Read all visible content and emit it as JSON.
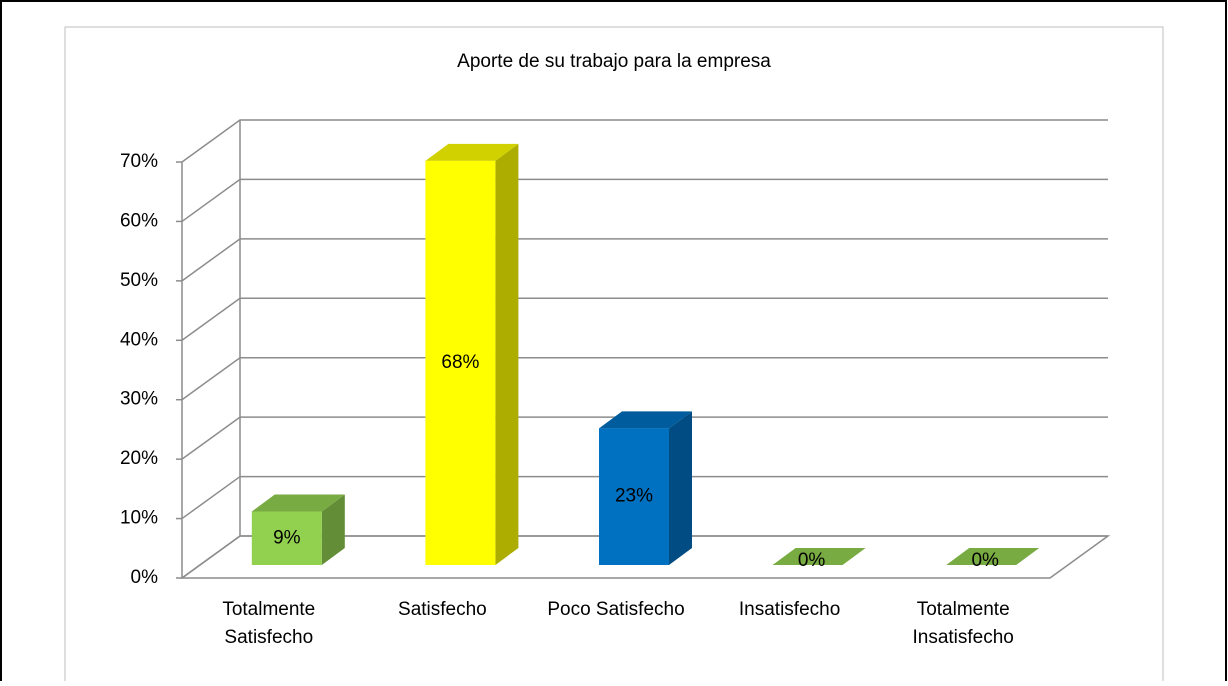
{
  "chart_data": {
    "type": "bar3d",
    "title": "Aporte de su trabajo para la empresa",
    "categories": [
      "Totalmente Satisfecho",
      "Satisfecho",
      "Poco Satisfecho",
      "Insatisfecho",
      "Totalmente Insatisfecho"
    ],
    "values": [
      9,
      68,
      23,
      0,
      0
    ],
    "value_labels": [
      "9%",
      "68%",
      "23%",
      "0%",
      "0%"
    ],
    "colors": [
      "#92d050",
      "#ffff00",
      "#0070c0",
      "#92d050",
      "#92d050"
    ],
    "ylim": [
      0,
      70
    ],
    "yticks": [
      {
        "value": 0,
        "label": "0%"
      },
      {
        "value": 10,
        "label": "10%"
      },
      {
        "value": 20,
        "label": "20%"
      },
      {
        "value": 30,
        "label": "30%"
      },
      {
        "value": 40,
        "label": "40%"
      },
      {
        "value": 50,
        "label": "50%"
      },
      {
        "value": 60,
        "label": "60%"
      },
      {
        "value": 70,
        "label": "70%"
      }
    ],
    "grid": true
  }
}
